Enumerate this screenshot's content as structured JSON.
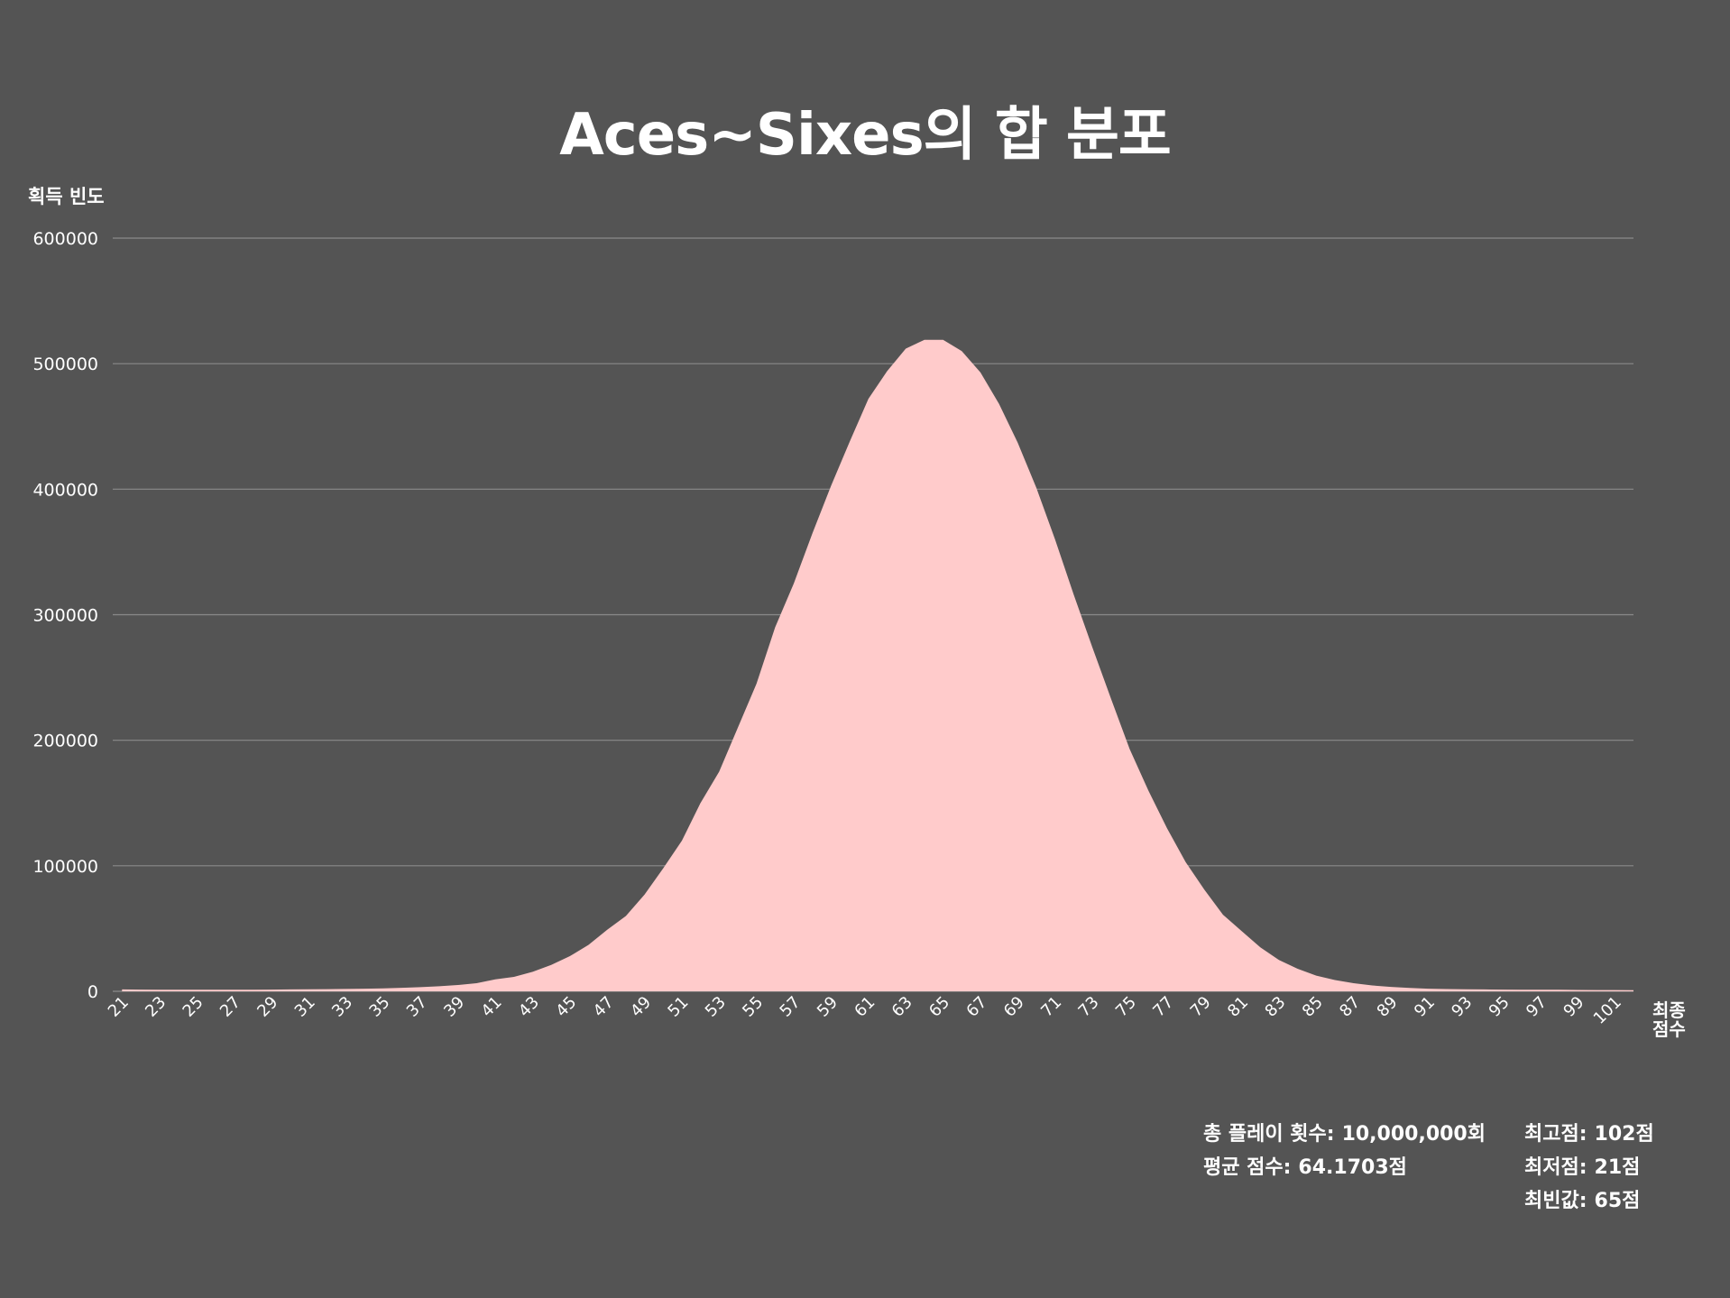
{
  "colors": {
    "background": "#545454",
    "area_fill": "#ffcbcb",
    "grid": "#8a8a8a",
    "text": "#ffffff"
  },
  "chart_data": {
    "type": "area",
    "title": "Aces~Sixes의 합 분포",
    "ylabel": "획득 빈도",
    "xlabel": "최종\n점수",
    "ylim": [
      0,
      600000
    ],
    "yticks": [
      0,
      100000,
      200000,
      300000,
      400000,
      500000,
      600000
    ],
    "xlim": [
      21,
      102
    ],
    "xticks": [
      21,
      23,
      25,
      27,
      29,
      31,
      33,
      35,
      37,
      39,
      41,
      43,
      45,
      47,
      49,
      51,
      53,
      55,
      57,
      59,
      61,
      63,
      65,
      67,
      69,
      71,
      73,
      75,
      77,
      79,
      81,
      83,
      85,
      87,
      89,
      91,
      93,
      95,
      97,
      99,
      101
    ],
    "grid": true,
    "legend": "none",
    "x": [
      21,
      22,
      23,
      24,
      25,
      26,
      27,
      28,
      29,
      30,
      31,
      32,
      33,
      34,
      35,
      36,
      37,
      38,
      39,
      40,
      41,
      42,
      43,
      44,
      45,
      46,
      47,
      48,
      49,
      50,
      51,
      52,
      53,
      54,
      55,
      56,
      57,
      58,
      59,
      60,
      61,
      62,
      63,
      64,
      65,
      66,
      67,
      68,
      69,
      70,
      71,
      72,
      73,
      74,
      75,
      76,
      77,
      78,
      79,
      80,
      81,
      82,
      83,
      84,
      85,
      86,
      87,
      88,
      89,
      90,
      91,
      92,
      93,
      94,
      95,
      96,
      97,
      98,
      99,
      100,
      101,
      102
    ],
    "values": [
      1500,
      1400,
      1300,
      1300,
      1300,
      1300,
      1300,
      1300,
      1400,
      1500,
      1600,
      1700,
      1900,
      2100,
      2400,
      2800,
      3300,
      4000,
      5000,
      6500,
      9500,
      11500,
      15500,
      21000,
      28000,
      37000,
      49000,
      60000,
      77000,
      98000,
      120000,
      150000,
      175000,
      210000,
      245000,
      290000,
      325000,
      365000,
      403000,
      438000,
      472000,
      494000,
      512000,
      519000,
      519000,
      510000,
      493000,
      468000,
      437000,
      401000,
      360000,
      316000,
      274000,
      233000,
      193000,
      160000,
      130000,
      103000,
      81000,
      61000,
      48000,
      35000,
      25000,
      18000,
      12500,
      9000,
      6500,
      4700,
      3500,
      2700,
      2100,
      1800,
      1600,
      1500,
      1400,
      1300,
      1200,
      1200,
      1100,
      1000,
      1000,
      900
    ]
  },
  "stats": {
    "total_plays_label": "총 플레이 횟수:",
    "total_plays_value": "10,000,000회",
    "mean_label": "평균 점수:",
    "mean_value": "64.1703점",
    "max_label": "최고점:",
    "max_value": "102점",
    "min_label": "최저점:",
    "min_value": "21점",
    "mode_label": "최빈값:",
    "mode_value": "65점"
  }
}
